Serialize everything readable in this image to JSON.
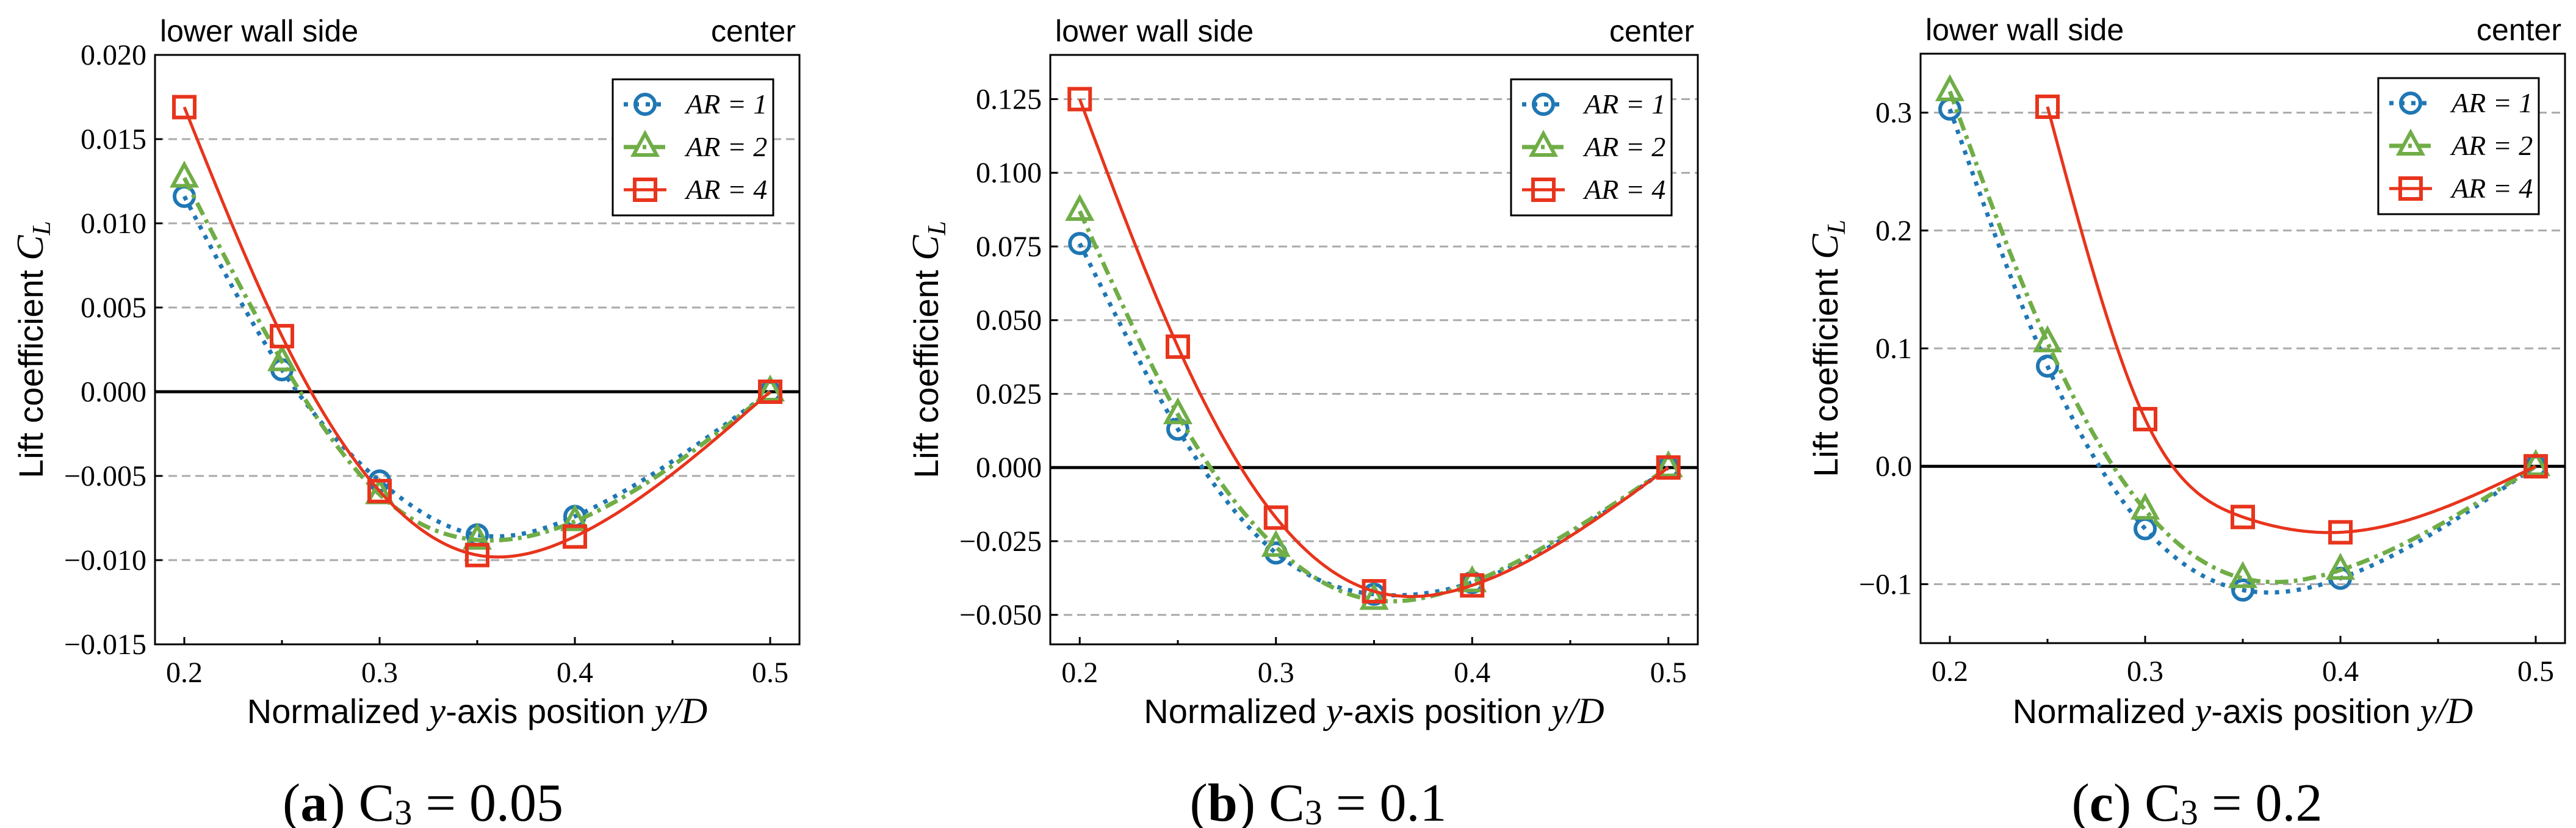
{
  "chart_data": [
    {
      "type": "line",
      "title": {
        "label": "a",
        "param": "C",
        "sub": "3",
        "value": " = 0.05"
      },
      "annotations": {
        "left": "lower wall side",
        "right": "center"
      },
      "xlabel_parts": [
        {
          "text": "Normalized "
        },
        {
          "text": "y",
          "italic": true
        },
        {
          "text": "-axis position "
        },
        {
          "text": "y/D",
          "italic": true
        }
      ],
      "ylabel": {
        "text": "Lift coefficient ",
        "symbol": "C",
        "sub": "L"
      },
      "xlim": [
        0.185,
        0.515
      ],
      "ylim": [
        -0.015,
        0.02
      ],
      "xticks": [
        0.2,
        0.3,
        0.4,
        0.5
      ],
      "xtick_labels": [
        "0.2",
        "0.3",
        "0.4",
        "0.5"
      ],
      "xminor": [
        0.25,
        0.35,
        0.45
      ],
      "yticks": [
        -0.015,
        -0.01,
        -0.005,
        0.0,
        0.005,
        0.01,
        0.015,
        0.02
      ],
      "ytick_labels": [
        "−0.015",
        "−0.010",
        "−0.005",
        "0.000",
        "0.005",
        "0.010",
        "0.015",
        "0.020"
      ],
      "grid": "horizontal dashed",
      "legend_position": "top-right",
      "series": [
        {
          "name": "AR = 1",
          "x": [
            0.2,
            0.25,
            0.3,
            0.35,
            0.4,
            0.5
          ],
          "y": [
            0.0116,
            0.0013,
            -0.0053,
            -0.0085,
            -0.0074,
            0.0
          ],
          "color": "#1f77b4",
          "linestyle": "dotted",
          "marker": "circle"
        },
        {
          "name": "AR = 2",
          "x": [
            0.2,
            0.25,
            0.3,
            0.35,
            0.4,
            0.5
          ],
          "y": [
            0.0127,
            0.0018,
            -0.0061,
            -0.0088,
            -0.0077,
            0.0
          ],
          "color": "#70ad47",
          "linestyle": "dashdot",
          "marker": "triangle"
        },
        {
          "name": "AR = 4",
          "x": [
            0.2,
            0.25,
            0.3,
            0.35,
            0.4,
            0.5
          ],
          "y": [
            0.0169,
            0.0033,
            -0.0059,
            -0.0097,
            -0.0086,
            0.0
          ],
          "color": "#e8341c",
          "linestyle": "solid",
          "marker": "square"
        }
      ]
    },
    {
      "type": "line",
      "title": {
        "label": "b",
        "param": "C",
        "sub": "3",
        "value": " = 0.1"
      },
      "annotations": {
        "left": "lower wall side",
        "right": "center"
      },
      "xlabel_parts": [
        {
          "text": "Normalized "
        },
        {
          "text": "y",
          "italic": true
        },
        {
          "text": "-axis position "
        },
        {
          "text": "y/D",
          "italic": true
        }
      ],
      "ylabel": {
        "text": "Lift coefficient ",
        "symbol": "C",
        "sub": "L"
      },
      "xlim": [
        0.185,
        0.515
      ],
      "ylim": [
        -0.06,
        0.14
      ],
      "xticks": [
        0.2,
        0.3,
        0.4,
        0.5
      ],
      "xtick_labels": [
        "0.2",
        "0.3",
        "0.4",
        "0.5"
      ],
      "xminor": [
        0.25,
        0.35,
        0.45
      ],
      "yticks": [
        -0.05,
        -0.025,
        0.0,
        0.025,
        0.05,
        0.075,
        0.1,
        0.125
      ],
      "ytick_labels": [
        "−0.050",
        "−0.025",
        "0.000",
        "0.025",
        "0.050",
        "0.075",
        "0.100",
        "0.125"
      ],
      "grid": "horizontal dashed",
      "legend_position": "top-right",
      "series": [
        {
          "name": "AR = 1",
          "x": [
            0.2,
            0.25,
            0.3,
            0.35,
            0.4,
            0.5
          ],
          "y": [
            0.076,
            0.013,
            -0.029,
            -0.043,
            -0.039,
            0.0
          ],
          "color": "#1f77b4",
          "linestyle": "dotted",
          "marker": "circle"
        },
        {
          "name": "AR = 2",
          "x": [
            0.2,
            0.25,
            0.3,
            0.35,
            0.4,
            0.5
          ],
          "y": [
            0.087,
            0.018,
            -0.027,
            -0.045,
            -0.039,
            0.0
          ],
          "color": "#70ad47",
          "linestyle": "dashdot",
          "marker": "triangle"
        },
        {
          "name": "AR = 4",
          "x": [
            0.2,
            0.25,
            0.3,
            0.35,
            0.4,
            0.5
          ],
          "y": [
            0.125,
            0.041,
            -0.017,
            -0.042,
            -0.04,
            0.0
          ],
          "color": "#e8341c",
          "linestyle": "solid",
          "marker": "square"
        }
      ]
    },
    {
      "type": "line",
      "title": {
        "label": "c",
        "param": "C",
        "sub": "3",
        "value": " = 0.2"
      },
      "annotations": {
        "left": "lower wall side",
        "right": "center"
      },
      "xlabel_parts": [
        {
          "text": "Normalized "
        },
        {
          "text": "y",
          "italic": true
        },
        {
          "text": "-axis position "
        },
        {
          "text": "y/D",
          "italic": true
        }
      ],
      "ylabel": {
        "text": "Lift coefficient ",
        "symbol": "C",
        "sub": "L"
      },
      "xlim": [
        0.185,
        0.515
      ],
      "ylim": [
        -0.15,
        0.35
      ],
      "xticks": [
        0.2,
        0.3,
        0.4,
        0.5
      ],
      "xtick_labels": [
        "0.2",
        "0.3",
        "0.4",
        "0.5"
      ],
      "xminor": [
        0.25,
        0.35,
        0.45
      ],
      "yticks": [
        -0.1,
        0.0,
        0.1,
        0.2,
        0.3
      ],
      "ytick_labels": [
        "−0.1",
        "0.0",
        "0.1",
        "0.2",
        "0.3"
      ],
      "grid": "horizontal dashed",
      "legend_position": "top-right",
      "series": [
        {
          "name": "AR = 1",
          "x": [
            0.2,
            0.25,
            0.3,
            0.35,
            0.4,
            0.5
          ],
          "y": [
            0.303,
            0.085,
            -0.053,
            -0.105,
            -0.095,
            0.0
          ],
          "color": "#1f77b4",
          "linestyle": "dotted",
          "marker": "circle"
        },
        {
          "name": "AR = 2",
          "x": [
            0.2,
            0.25,
            0.3,
            0.35,
            0.4,
            0.5
          ],
          "y": [
            0.318,
            0.105,
            -0.037,
            -0.095,
            -0.088,
            0.0
          ],
          "color": "#70ad47",
          "linestyle": "dashdot",
          "marker": "triangle"
        },
        {
          "name": "AR = 4",
          "x": [
            0.25,
            0.3,
            0.35,
            0.4,
            0.5
          ],
          "y": [
            0.305,
            0.04,
            -0.043,
            -0.056,
            0.0
          ],
          "color": "#e8341c",
          "linestyle": "solid",
          "marker": "square"
        }
      ]
    }
  ]
}
